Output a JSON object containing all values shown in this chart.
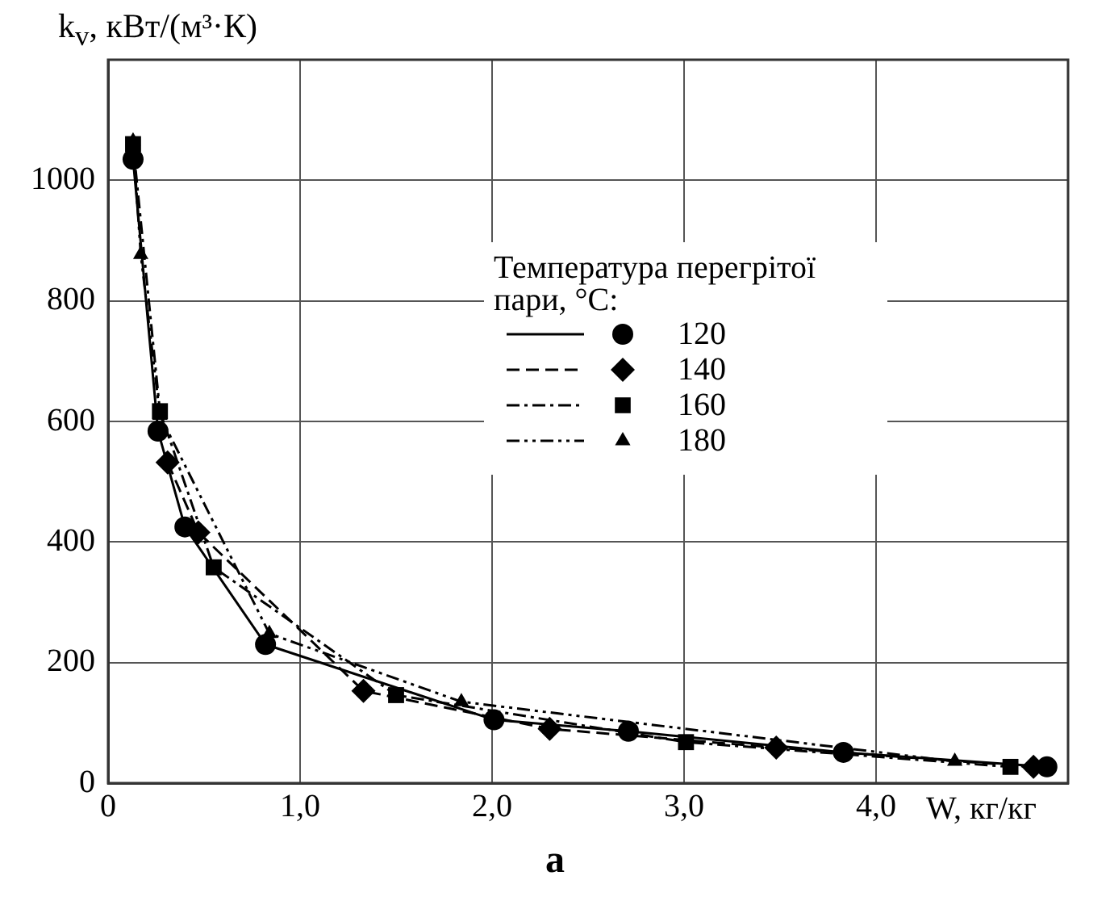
{
  "chart_data": {
    "type": "line",
    "ylabel": "k$_{v}$, кВт/(м³·К)",
    "xlabel": "W, кг/кг",
    "legend_title": "Температура перегрітої пари, °C:",
    "annotations": [
      "а"
    ],
    "xlim": [
      0,
      5
    ],
    "xticks": [
      0,
      {
        "value": 1,
        "label": "1,0"
      },
      {
        "value": 2,
        "label": "2,0"
      },
      {
        "value": 3,
        "label": "3,0"
      },
      {
        "value": 4,
        "label": "4,0"
      }
    ],
    "ylim": [
      0,
      1200
    ],
    "yticks": [
      0,
      200,
      400,
      600,
      800,
      1000
    ],
    "grid": true,
    "legend": "top right",
    "series": [
      {
        "name": "120",
        "color": "#000000",
        "marker": "circle",
        "line_style": "solid",
        "x": [
          0.13,
          0.26,
          0.4,
          0.82,
          2.01,
          2.71,
          3.83,
          4.89
        ],
        "values": [
          1035,
          584,
          425,
          230,
          105,
          86,
          51,
          27
        ]
      },
      {
        "name": "140",
        "color": "#000000",
        "marker": "diamond",
        "line_style": "dashed",
        "x": [
          0.31,
          0.47,
          1.33,
          2.3,
          3.48,
          4.82
        ],
        "values": [
          532,
          416,
          153,
          90,
          59,
          27
        ]
      },
      {
        "name": "160",
        "color": "#000000",
        "marker": "square",
        "line_style": "dashdot",
        "x": [
          0.13,
          0.27,
          0.55,
          1.5,
          3.01,
          4.7
        ],
        "values": [
          1060,
          617,
          358,
          146,
          68,
          27
        ]
      },
      {
        "name": "180",
        "color": "#000000",
        "marker": "triangle",
        "line_style": "dashdotdot",
        "x": [
          0.13,
          0.17,
          0.27,
          0.84,
          1.84,
          4.41
        ],
        "values": [
          1065,
          877,
          610,
          248,
          135,
          36
        ]
      }
    ]
  }
}
